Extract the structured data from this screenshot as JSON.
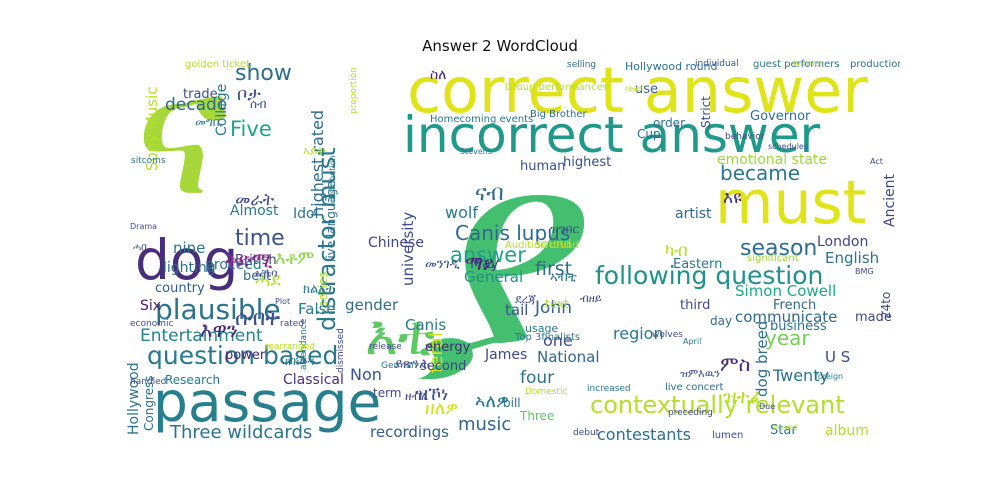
{
  "title": "Answer 2 WordCloud",
  "words": [
    {
      "text": "ና",
      "color": "#a6d839"
    },
    {
      "text": "ያ",
      "color": "#44bf70"
    },
    {
      "text": "correct answer",
      "color": "#dfe318"
    },
    {
      "text": "incorrect answer",
      "color": "#1f9a8a"
    },
    {
      "text": "must",
      "color": "#dfe318"
    },
    {
      "text": "passage",
      "color": "#277f8e"
    },
    {
      "text": "dog",
      "color": "#472d7b"
    },
    {
      "text": "እቲ",
      "color": "#5ec962"
    },
    {
      "text": "question based",
      "color": "#2a788e"
    },
    {
      "text": "contextually relevant",
      "color": "#b5de2b"
    },
    {
      "text": "following question",
      "color": "#21918c"
    },
    {
      "text": "plausible",
      "color": "#2c728e"
    },
    {
      "text": "distractor must",
      "color": "#2a788e"
    },
    {
      "text": "Canis lupus",
      "color": "#30688e"
    },
    {
      "text": "highest rated",
      "color": "#2f6c8e"
    },
    {
      "text": "became",
      "color": "#2a778e"
    },
    {
      "text": "season",
      "color": "#2f6c8e"
    },
    {
      "text": "Entertainment",
      "color": "#26828e"
    },
    {
      "text": "Three wildcards",
      "color": "#2c738e"
    },
    {
      "text": "time",
      "color": "#3b528b"
    },
    {
      "text": "show",
      "color": "#2e6e8e"
    },
    {
      "text": "Five",
      "color": "#20a486"
    },
    {
      "text": "decade",
      "color": "#31668e"
    },
    {
      "text": "answer",
      "color": "#1fa088"
    },
    {
      "text": "first",
      "color": "#2f6b8e"
    },
    {
      "text": "year",
      "color": "#75d054"
    },
    {
      "text": "music",
      "color": "#31678e"
    },
    {
      "text": "recordings",
      "color": "#365c8d"
    },
    {
      "text": "contestants",
      "color": "#2e6e8e"
    },
    {
      "text": "album",
      "color": "#b5de2b"
    },
    {
      "text": "emotional state",
      "color": "#9dd93b"
    },
    {
      "text": "Simon Cowell",
      "color": "#22a785"
    },
    {
      "text": "London",
      "color": "#3f4788"
    },
    {
      "text": "English",
      "color": "#2c728e"
    },
    {
      "text": "Ancient",
      "color": "#414487"
    },
    {
      "text": "communicate",
      "color": "#31678e"
    },
    {
      "text": "dog breed",
      "color": "#2e6f8e"
    },
    {
      "text": "Twenty",
      "color": "#2c738e"
    },
    {
      "text": "U S",
      "color": "#3e4c8a"
    },
    {
      "text": "John",
      "color": "#34608d"
    },
    {
      "text": "region",
      "color": "#2a788e"
    },
    {
      "text": "National",
      "color": "#31688e"
    },
    {
      "text": "four",
      "color": "#2c728e"
    },
    {
      "text": "one",
      "color": "#3d4e8a"
    },
    {
      "text": "feral",
      "color": "#d2e21b"
    },
    {
      "text": "tail",
      "color": "#3b528b"
    },
    {
      "text": "Canis",
      "color": "#2a788e"
    },
    {
      "text": "General",
      "color": "#21918c"
    },
    {
      "text": "James",
      "color": "#3e4989"
    },
    {
      "text": "gender",
      "color": "#2f6c8e"
    },
    {
      "text": "False",
      "color": "#2a778e"
    },
    {
      "text": "Non",
      "color": "#3a538b"
    },
    {
      "text": "Classical",
      "color": "#46327e"
    },
    {
      "text": "Idol",
      "color": "#2c738e"
    },
    {
      "text": "British",
      "color": "#414487"
    },
    {
      "text": "nine",
      "color": "#2b748e"
    },
    {
      "text": "lighting",
      "color": "#2f6c8e"
    },
    {
      "text": "Almost",
      "color": "#2a788e"
    },
    {
      "text": "Sony Music",
      "color": "#b5de2b"
    },
    {
      "text": "College",
      "color": "#2a788e"
    },
    {
      "text": "trade",
      "color": "#3e4c8a"
    },
    {
      "text": "Six",
      "color": "#481a6c"
    },
    {
      "text": "country",
      "color": "#355e8d"
    },
    {
      "text": "proceed",
      "color": "#2b758e"
    },
    {
      "text": "best",
      "color": "#31688e"
    },
    {
      "text": "Hollywood",
      "color": "#2c728e"
    },
    {
      "text": "Congress",
      "color": "#2f6c8e"
    },
    {
      "text": "Research",
      "color": "#2a788e"
    },
    {
      "text": "power",
      "color": "#482878"
    },
    {
      "text": "wolf",
      "color": "#2a778e"
    },
    {
      "text": "May",
      "color": "#3e4989"
    },
    {
      "text": "Chinese",
      "color": "#3f4788"
    },
    {
      "text": "university",
      "color": "#3e4c8a"
    },
    {
      "text": "live language",
      "color": "#2c728e"
    },
    {
      "text": "human",
      "color": "#3b528b"
    },
    {
      "text": "highest",
      "color": "#3e4c8a"
    },
    {
      "text": "use",
      "color": "#34608d"
    },
    {
      "text": "Cup",
      "color": "#2f6b8e"
    },
    {
      "text": "Governor",
      "color": "#2f6c8e"
    },
    {
      "text": "Strict",
      "color": "#3b528b"
    },
    {
      "text": "order",
      "color": "#2f6c8e"
    },
    {
      "text": "artist",
      "color": "#31688e"
    },
    {
      "text": "Eastern",
      "color": "#2a788e"
    },
    {
      "text": "third",
      "color": "#3e4c8a"
    },
    {
      "text": "made",
      "color": "#3e4c8a"
    },
    {
      "text": "business",
      "color": "#2c728e"
    },
    {
      "text": "French",
      "color": "#31688e"
    },
    {
      "text": "Star",
      "color": "#2c728e"
    },
    {
      "text": "second",
      "color": "#3f4788"
    },
    {
      "text": "energy",
      "color": "#482878"
    },
    {
      "text": "term",
      "color": "#3e4c8a"
    },
    {
      "text": "bill",
      "color": "#2c728e"
    },
    {
      "text": "Three",
      "color": "#5ec962"
    },
    {
      "text": "text",
      "color": "#b5de2b"
    },
    {
      "text": "sound",
      "color": "#b5de2b"
    },
    {
      "text": "series",
      "color": "#b5de2b"
    },
    {
      "text": "usage",
      "color": "#2a788e"
    },
    {
      "text": "day",
      "color": "#2f6c8e"
    },
    {
      "text": "24to",
      "color": "#3e4c8a"
    },
    {
      "text": "lumen",
      "color": "#3e4c8a"
    },
    {
      "text": "significant",
      "color": "#9dd93b"
    },
    {
      "text": "Hollywood round",
      "color": "#2c728e"
    },
    {
      "text": "Group performances",
      "color": "#b5de2b"
    },
    {
      "text": "guest performers",
      "color": "#2a788e"
    },
    {
      "text": "production team",
      "color": "#2c728e"
    },
    {
      "text": "Homecoming events",
      "color": "#2a788e"
    },
    {
      "text": "Big Brother",
      "color": "#2f6c8e"
    },
    {
      "text": "Top 3finalists",
      "color": "#2a788e"
    },
    {
      "text": "Audition round",
      "color": "#b5de2b"
    },
    {
      "text": "live concert",
      "color": "#2f6c8e"
    },
    {
      "text": "golden ticket",
      "color": "#b5de2b"
    },
    {
      "text": "selling",
      "color": "#2f6c8e"
    },
    {
      "text": "individual",
      "color": "#3b528b"
    },
    {
      "text": "winner",
      "color": "#b5de2b"
    },
    {
      "text": "sitcoms",
      "color": "#2a788e"
    },
    {
      "text": "proportion",
      "color": "#b5de2b"
    },
    {
      "text": "economic",
      "color": "#3e4c8a"
    },
    {
      "text": "handled",
      "color": "#3e4c8a"
    },
    {
      "text": "rated",
      "color": "#3e4c8a"
    },
    {
      "text": "attendance",
      "color": "#2a788e"
    },
    {
      "text": "rearranged",
      "color": "#b5de2b"
    },
    {
      "text": "dismissed",
      "color": "#3e4c8a"
    },
    {
      "text": "release",
      "color": "#3e4c8a"
    },
    {
      "text": "German",
      "color": "#2a788e"
    },
    {
      "text": "Domestic",
      "color": "#b5de2b"
    },
    {
      "text": "debut",
      "color": "#3e4c8a"
    },
    {
      "text": "increased",
      "color": "#2a788e"
    },
    {
      "text": "preceding",
      "color": "#3e4c8a"
    },
    {
      "text": "Due",
      "color": "#3e4c8a"
    },
    {
      "text": "based",
      "color": "#b5de2b"
    },
    {
      "text": "foreign",
      "color": "#2a788e"
    },
    {
      "text": "wolves",
      "color": "#3e4c8a"
    },
    {
      "text": "April",
      "color": "#2a788e"
    },
    {
      "text": "behavior",
      "color": "#3e4c8a"
    },
    {
      "text": "schedules",
      "color": "#3e4c8a"
    },
    {
      "text": "Plot",
      "color": "#3e4c8a"
    },
    {
      "text": "Drama",
      "color": "#3e4c8a"
    },
    {
      "text": "Stevens",
      "color": "#2a788e"
    },
    {
      "text": "BMG",
      "color": "#3e4c8a"
    },
    {
      "text": "read",
      "color": "#b5de2b"
    },
    {
      "text": "Act",
      "color": "#3e4c8a"
    },
    {
      "text": "distribution",
      "color": "#2a788e"
    },
    {
      "text": "ቦታ",
      "color": "#3e4c8a"
    },
    {
      "text": "መራት",
      "color": "#3e4c8a"
    },
    {
      "text": "ቅድሚ",
      "color": "#8b2a8e"
    },
    {
      "text": "ሓደ",
      "color": "#b5de2b"
    },
    {
      "text": "እቶም",
      "color": "#8bd646"
    },
    {
      "text": "እዋን",
      "color": "#482878"
    },
    {
      "text": "ሰብት",
      "color": "#3e4c8a"
    },
    {
      "text": "ናብ",
      "color": "#2f6c8e"
    },
    {
      "text": "ማይ",
      "color": "#482878"
    },
    {
      "text": "እዩ",
      "color": "#472d7b"
    },
    {
      "text": "ምስ",
      "color": "#482878"
    },
    {
      "text": "ዝተፈ",
      "color": "#b5de2b"
    },
    {
      "text": "ኣለዎ",
      "color": "#2a788e"
    },
    {
      "text": "ዘለዎ",
      "color": "#d2e21b"
    },
    {
      "text": "ዝኾነ",
      "color": "#3e4c8a"
    },
    {
      "text": "ክልኣት",
      "color": "#2a788e"
    },
    {
      "text": "ካብ",
      "color": "#b5de2b"
    },
    {
      "text": "ስለ",
      "color": "#472d7b"
    },
    {
      "text": "መግቢ",
      "color": "#2a788e"
    },
    {
      "text": "ሰብ",
      "color": "#3e4c8a"
    },
    {
      "text": "ኣይት",
      "color": "#b5de2b"
    },
    {
      "text": "ሓበ",
      "color": "#3e4c8a"
    },
    {
      "text": "ዝምእዉን",
      "color": "#3e4c8a"
    },
    {
      "text": "ብዘይ",
      "color": "#3e4c8a"
    },
    {
      "text": "ኣብቲ",
      "color": "#2a788e"
    },
    {
      "text": "ኣኼባ",
      "color": "#3e4c8a"
    },
    {
      "text": "ዘብለ",
      "color": "#3e4c8a"
    },
    {
      "text": "ይጽንሕ",
      "color": "#3e4c8a"
    },
    {
      "text": "መንገዲ",
      "color": "#3e4c8a"
    },
    {
      "text": "ዝግበር",
      "color": "#3e4c8a"
    },
    {
      "text": "ደረጃ",
      "color": "#3e4c8a"
    },
    {
      "text": "ክኸውን",
      "color": "#2a788e"
    },
    {
      "text": "ኢሉ",
      "color": "#3e4c8a"
    }
  ]
}
